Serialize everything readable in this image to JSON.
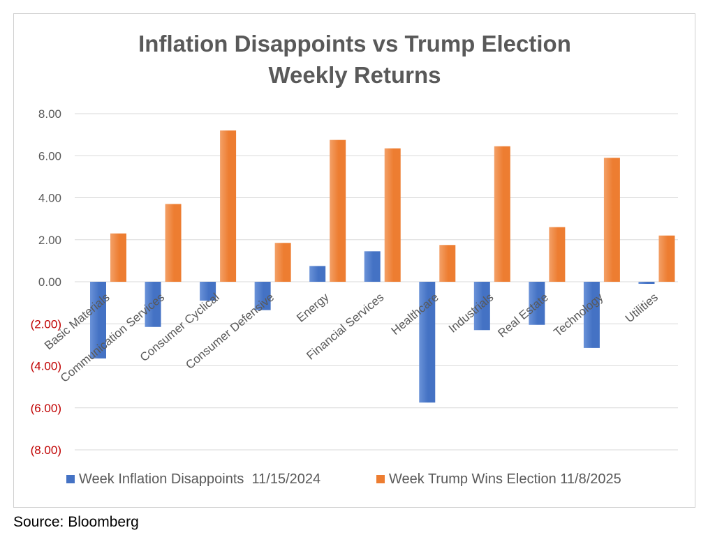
{
  "chart_data": {
    "type": "bar",
    "title_lines": [
      "Inflation Disappoints vs Trump Election",
      "Weekly Returns"
    ],
    "xlabel": "",
    "ylabel": "",
    "ylim": [
      -8,
      8
    ],
    "y_ticks": [
      {
        "value": 8,
        "label": "8.00"
      },
      {
        "value": 6,
        "label": "6.00"
      },
      {
        "value": 4,
        "label": "4.00"
      },
      {
        "value": 2,
        "label": "2.00"
      },
      {
        "value": 0,
        "label": "0.00"
      },
      {
        "value": -2,
        "label": "(2.00)"
      },
      {
        "value": -4,
        "label": "(4.00)"
      },
      {
        "value": -6,
        "label": "(6.00)"
      },
      {
        "value": -8,
        "label": "(8.00)"
      }
    ],
    "categories": [
      "Basic Materials",
      "Communication Services",
      "Consumer Cyclical",
      "Consumer Defensive",
      "Energy",
      "Financial Services",
      "Healthcare",
      "Industrials",
      "Real Estate",
      "Technology",
      "Utilities"
    ],
    "series": [
      {
        "name": "Week Inflation Disappoints  11/15/2024",
        "color": "#4472c4",
        "values": [
          -3.65,
          -2.15,
          -0.9,
          -1.35,
          0.75,
          1.45,
          -5.75,
          -2.3,
          -2.05,
          -3.15,
          -0.1
        ]
      },
      {
        "name": "Week Trump Wins Election 11/8/2025",
        "color": "#ed7d31",
        "values": [
          2.3,
          3.7,
          7.2,
          1.85,
          6.75,
          6.35,
          1.75,
          6.45,
          2.6,
          5.9,
          2.2
        ]
      }
    ],
    "grid": true,
    "negative_label_color": "#c00000",
    "positive_label_color": "#595959",
    "legend_position": "bottom"
  },
  "source_note": "Source: Bloomberg"
}
